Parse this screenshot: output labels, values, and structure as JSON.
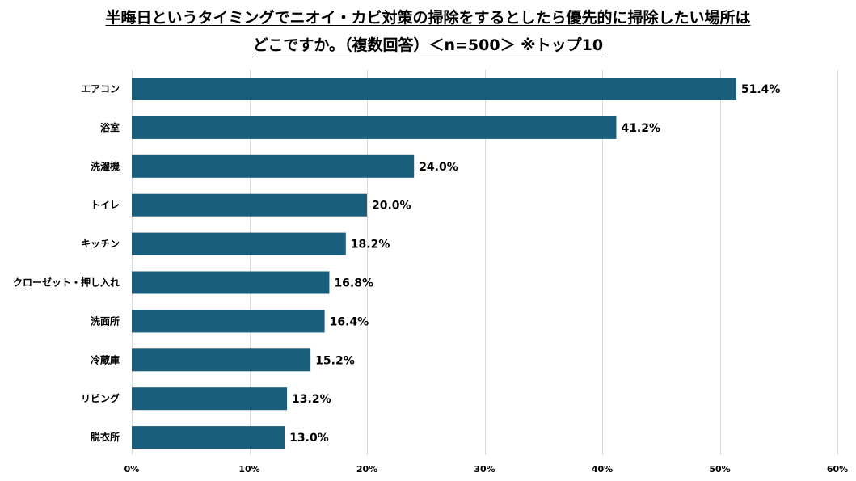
{
  "chart_data": {
    "type": "bar",
    "orientation": "horizontal",
    "title_lines": [
      "半晦日というタイミングでニオイ・カビ対策の掃除をするとしたら優先的に掃除したい場所は",
      "どこですか。（複数回答）＜n=500＞ ※トップ10"
    ],
    "categories": [
      "エアコン",
      "浴室",
      "洗濯機",
      "トイレ",
      "キッチン",
      "クローゼット・押し入れ",
      "洗面所",
      "冷蔵庫",
      "リビング",
      "脱衣所"
    ],
    "values": [
      51.4,
      41.2,
      24.0,
      20.0,
      18.2,
      16.8,
      16.4,
      15.2,
      13.2,
      13.0
    ],
    "value_labels": [
      "51.4%",
      "41.2%",
      "24.0%",
      "20.0%",
      "18.2%",
      "16.8%",
      "16.4%",
      "15.2%",
      "13.2%",
      "13.0%"
    ],
    "xlim": [
      0,
      60
    ],
    "x_ticks": [
      0,
      10,
      20,
      30,
      40,
      50,
      60
    ],
    "x_tick_labels": [
      "0%",
      "10%",
      "20%",
      "30%",
      "40%",
      "50%",
      "60%"
    ],
    "xlabel": "",
    "ylabel": "",
    "grid": true,
    "legend": "none",
    "bar_color": "#1a5e7e",
    "grid_color": "#d9d9d9"
  }
}
